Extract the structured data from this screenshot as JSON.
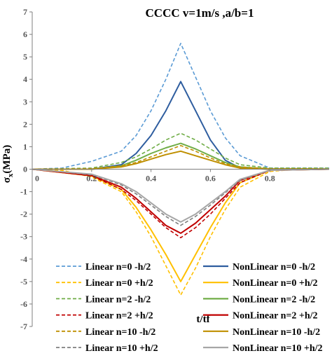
{
  "chart_data": {
    "type": "line",
    "title": "CCCC  v=1m/s ,a/b=1",
    "xlabel": "t/tf",
    "ylabel": "σx(MPa)",
    "ylabel_main": "σ",
    "ylabel_sub": "x",
    "ylabel_rest": "(MPa)",
    "xlim": [
      0,
      1
    ],
    "ylim": [
      -7,
      7
    ],
    "x_ticks": [
      0,
      0.2,
      0.4,
      0.6,
      0.8
    ],
    "x_tick_labels": [
      "0",
      "0.2",
      "0.4",
      "0.6",
      "0.8"
    ],
    "y_ticks": [
      -7,
      -6,
      -5,
      -4,
      -3,
      -2,
      -1,
      0,
      1,
      2,
      3,
      4,
      5,
      6,
      7
    ],
    "y_tick_labels": [
      "-7",
      "-6",
      "-5",
      "-4",
      "-3",
      "-2",
      "-1",
      "0",
      "1",
      "2",
      "3",
      "4",
      "5",
      "6",
      "7"
    ],
    "legend_placement": "bottom",
    "series": [
      {
        "name": "Linear n=0 -h/2",
        "color": "#5b9bd5",
        "dashed": true,
        "x": [
          0,
          0.1,
          0.2,
          0.3,
          0.35,
          0.4,
          0.45,
          0.5,
          0.55,
          0.6,
          0.65,
          0.7,
          0.8,
          0.9,
          1.0
        ],
        "y": [
          0,
          0.05,
          0.35,
          0.8,
          1.5,
          2.6,
          4.0,
          5.6,
          4.1,
          2.6,
          1.4,
          0.6,
          0.05,
          0.05,
          0.05
        ]
      },
      {
        "name": "NonLinear n=0 -h/2",
        "color": "#2e5d9f",
        "dashed": false,
        "x": [
          0,
          0.2,
          0.3,
          0.35,
          0.4,
          0.45,
          0.5,
          0.55,
          0.6,
          0.65,
          0.7,
          0.8,
          1.0
        ],
        "y": [
          0,
          0,
          0.2,
          0.7,
          1.5,
          2.6,
          3.9,
          2.6,
          1.3,
          0.4,
          0.05,
          0,
          0
        ]
      },
      {
        "name": "Linear n=0 +h/2",
        "color": "#ffc000",
        "dashed": true,
        "x": [
          0,
          0.1,
          0.2,
          0.3,
          0.35,
          0.4,
          0.45,
          0.5,
          0.55,
          0.6,
          0.65,
          0.7,
          0.8,
          0.9,
          1.0
        ],
        "y": [
          0,
          -0.05,
          -0.35,
          -1.0,
          -1.9,
          -3.0,
          -4.3,
          -5.6,
          -4.4,
          -3.0,
          -1.8,
          -0.8,
          -0.1,
          0,
          0
        ]
      },
      {
        "name": "NonLinear n=0 +h/2",
        "color": "#ffc000",
        "dashed": false,
        "x": [
          0,
          0.2,
          0.3,
          0.35,
          0.4,
          0.45,
          0.5,
          0.55,
          0.6,
          0.65,
          0.7,
          0.8,
          1.0
        ],
        "y": [
          0,
          -0.3,
          -0.9,
          -1.7,
          -2.7,
          -3.8,
          -5.0,
          -3.8,
          -2.6,
          -1.5,
          -0.6,
          -0.05,
          0
        ]
      },
      {
        "name": "Linear n=2 -h/2",
        "color": "#70ad47",
        "dashed": true,
        "x": [
          0,
          0.2,
          0.3,
          0.35,
          0.4,
          0.45,
          0.5,
          0.55,
          0.6,
          0.65,
          0.7,
          0.8,
          1.0
        ],
        "y": [
          0,
          0.05,
          0.3,
          0.55,
          0.9,
          1.3,
          1.6,
          1.3,
          0.9,
          0.5,
          0.2,
          0.05,
          0.05
        ]
      },
      {
        "name": "NonLinear n=2 -h/2",
        "color": "#70ad47",
        "dashed": false,
        "x": [
          0,
          0.2,
          0.3,
          0.35,
          0.4,
          0.45,
          0.5,
          0.55,
          0.6,
          0.65,
          0.7,
          0.8,
          1.0
        ],
        "y": [
          0,
          0,
          0.15,
          0.4,
          0.7,
          0.95,
          1.15,
          0.9,
          0.6,
          0.3,
          0.1,
          0,
          0
        ]
      },
      {
        "name": "Linear n=2 +h/2",
        "color": "#c00000",
        "dashed": true,
        "x": [
          0,
          0.2,
          0.3,
          0.35,
          0.4,
          0.45,
          0.5,
          0.55,
          0.6,
          0.65,
          0.7,
          0.8,
          1.0
        ],
        "y": [
          0,
          -0.3,
          -0.9,
          -1.4,
          -2.0,
          -2.6,
          -3.05,
          -2.6,
          -2.0,
          -1.3,
          -0.6,
          -0.05,
          0
        ]
      },
      {
        "name": "NonLinear n=2 +h/2",
        "color": "#c00000",
        "dashed": false,
        "x": [
          0,
          0.2,
          0.3,
          0.35,
          0.4,
          0.45,
          0.5,
          0.55,
          0.6,
          0.65,
          0.7,
          0.8,
          1.0
        ],
        "y": [
          0,
          -0.28,
          -0.8,
          -1.3,
          -1.9,
          -2.5,
          -2.85,
          -2.4,
          -1.8,
          -1.2,
          -0.5,
          -0.05,
          0
        ]
      },
      {
        "name": "Linear n=10 -h/2",
        "color": "#bf8f00",
        "dashed": true,
        "x": [
          0,
          0.2,
          0.3,
          0.35,
          0.4,
          0.45,
          0.5,
          0.55,
          0.6,
          0.65,
          0.7,
          0.8,
          1.0
        ],
        "y": [
          0,
          0.02,
          0.15,
          0.3,
          0.55,
          0.8,
          1.05,
          0.8,
          0.5,
          0.25,
          0.1,
          0.02,
          0.02
        ]
      },
      {
        "name": "NonLinear n=10 -h/2",
        "color": "#bf8f00",
        "dashed": false,
        "x": [
          0,
          0.2,
          0.3,
          0.35,
          0.4,
          0.45,
          0.5,
          0.55,
          0.6,
          0.65,
          0.7,
          0.8,
          1.0
        ],
        "y": [
          0,
          0,
          0.1,
          0.25,
          0.45,
          0.65,
          0.8,
          0.6,
          0.4,
          0.2,
          0.05,
          0,
          0
        ]
      },
      {
        "name": "Linear n=10 +h/2",
        "color": "#7f7f7f",
        "dashed": true,
        "x": [
          0,
          0.2,
          0.3,
          0.35,
          0.4,
          0.45,
          0.5,
          0.55,
          0.6,
          0.65,
          0.7,
          0.8,
          1.0
        ],
        "y": [
          0,
          -0.25,
          -0.7,
          -1.1,
          -1.6,
          -2.1,
          -2.5,
          -2.1,
          -1.6,
          -1.05,
          -0.5,
          -0.05,
          0
        ]
      },
      {
        "name": "NonLinear n=10 +h/2",
        "color": "#a6a6a6",
        "dashed": false,
        "x": [
          0,
          0.2,
          0.3,
          0.35,
          0.4,
          0.45,
          0.5,
          0.55,
          0.6,
          0.65,
          0.7,
          0.8,
          1.0
        ],
        "y": [
          0,
          -0.22,
          -0.65,
          -1.0,
          -1.5,
          -2.0,
          -2.35,
          -2.0,
          -1.5,
          -1.0,
          -0.45,
          -0.05,
          0
        ]
      }
    ]
  }
}
